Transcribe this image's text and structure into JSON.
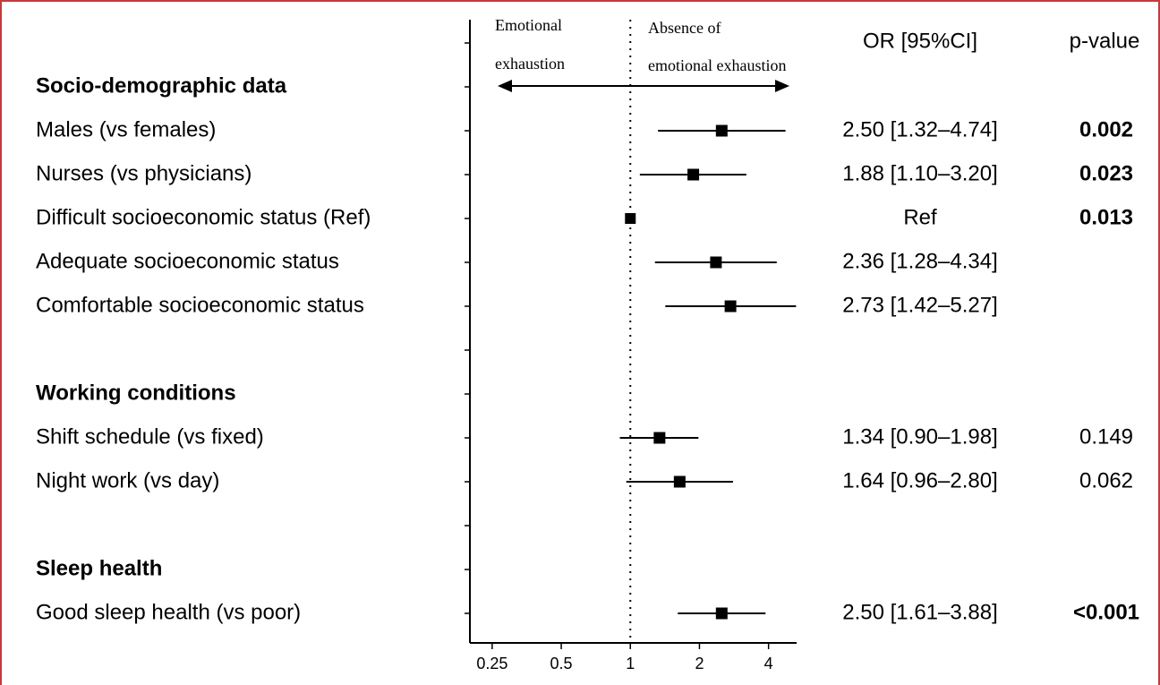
{
  "chart_data": {
    "type": "forest",
    "x_scale": "log2",
    "xlim": [
      0.2,
      5.3
    ],
    "x_ticks": [
      "0.25",
      "0.5",
      "1",
      "2",
      "4"
    ],
    "reference_line": 1,
    "direction_labels": {
      "left": [
        "Emotional",
        "exhaustion"
      ],
      "right": [
        "Absence of",
        "emotional exhaustion"
      ]
    },
    "column_headers": {
      "or": "OR [95%CI]",
      "p": "p-value"
    },
    "rows": [
      {
        "label": "Socio-demographic data",
        "header": true
      },
      {
        "label": "Males (vs females)",
        "or": 2.5,
        "lo": 1.32,
        "hi": 4.74,
        "or_text": "2.50 [1.32–4.74]",
        "p": "0.002",
        "p_bold": true
      },
      {
        "label": "Nurses (vs physicians)",
        "or": 1.88,
        "lo": 1.1,
        "hi": 3.2,
        "or_text": "1.88 [1.10–3.20]",
        "p": "0.023",
        "p_bold": true
      },
      {
        "label": "Difficult socioeconomic status (Ref)",
        "or": 1.0,
        "or_text": "Ref",
        "p": "0.013",
        "p_bold": true,
        "ref": true
      },
      {
        "label": "Adequate socioeconomic status",
        "or": 2.36,
        "lo": 1.28,
        "hi": 4.34,
        "or_text": "2.36 [1.28–4.34]",
        "p": ""
      },
      {
        "label": "Comfortable socioeconomic status",
        "or": 2.73,
        "lo": 1.42,
        "hi": 5.27,
        "or_text": "2.73 [1.42–5.27]",
        "p": ""
      },
      {
        "label": "",
        "spacer": true
      },
      {
        "label": "Working conditions",
        "header": true
      },
      {
        "label": "Shift schedule (vs fixed)",
        "or": 1.34,
        "lo": 0.9,
        "hi": 1.98,
        "or_text": "1.34 [0.90–1.98]",
        "p": "0.149",
        "p_bold": false
      },
      {
        "label": "Night work (vs day)",
        "or": 1.64,
        "lo": 0.96,
        "hi": 2.8,
        "or_text": "1.64 [0.96–2.80]",
        "p": "0.062",
        "p_bold": false
      },
      {
        "label": "",
        "spacer": true
      },
      {
        "label": "Sleep health",
        "header": true
      },
      {
        "label": "Good sleep health (vs poor)",
        "or": 2.5,
        "lo": 1.61,
        "hi": 3.88,
        "or_text": "2.50 [1.61–3.88]",
        "p": "<0.001",
        "p_bold": true
      }
    ],
    "colors": {
      "frame": "#c23b3b",
      "ink": "#000000"
    }
  }
}
